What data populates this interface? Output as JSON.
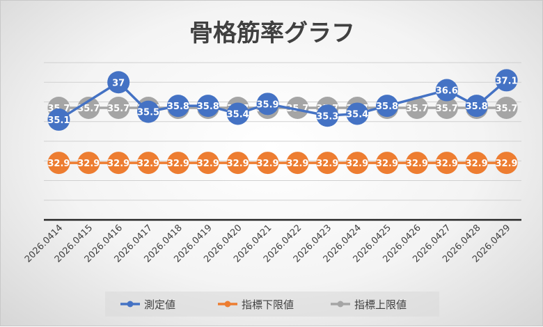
{
  "chart_data": {
    "type": "line",
    "title": "骨格筋率グラフ",
    "categories": [
      "2026.0414",
      "2026.0415",
      "2026.0416",
      "2026.0417",
      "2026.0418",
      "2026.0419",
      "2026.0420",
      "2026.0421",
      "2026.0422",
      "2026.0423",
      "2026.0424",
      "2026.0425",
      "2026.0426",
      "2026.0427",
      "2026.0428",
      "2026.0429"
    ],
    "series": [
      {
        "name": "測定値",
        "color": "#4472c4",
        "values": [
          35.1,
          null,
          37,
          35.5,
          35.8,
          35.8,
          35.4,
          35.9,
          null,
          35.3,
          35.4,
          35.8,
          null,
          36.6,
          35.8,
          37.1
        ]
      },
      {
        "name": "指標下限値",
        "color": "#ed7d31",
        "values": [
          32.9,
          32.9,
          32.9,
          32.9,
          32.9,
          32.9,
          32.9,
          32.9,
          32.9,
          32.9,
          32.9,
          32.9,
          32.9,
          32.9,
          32.9,
          32.9
        ]
      },
      {
        "name": "指標上限値",
        "color": "#a5a5a5",
        "values": [
          35.7,
          35.7,
          35.7,
          35.7,
          35.7,
          35.7,
          35.7,
          35.7,
          35.7,
          35.7,
          35.7,
          35.7,
          35.7,
          35.7,
          35.7,
          35.7
        ]
      }
    ],
    "xlabel": "",
    "ylabel": "",
    "ylim": [
      30,
      38
    ],
    "grid": true,
    "legend": "bottom"
  }
}
